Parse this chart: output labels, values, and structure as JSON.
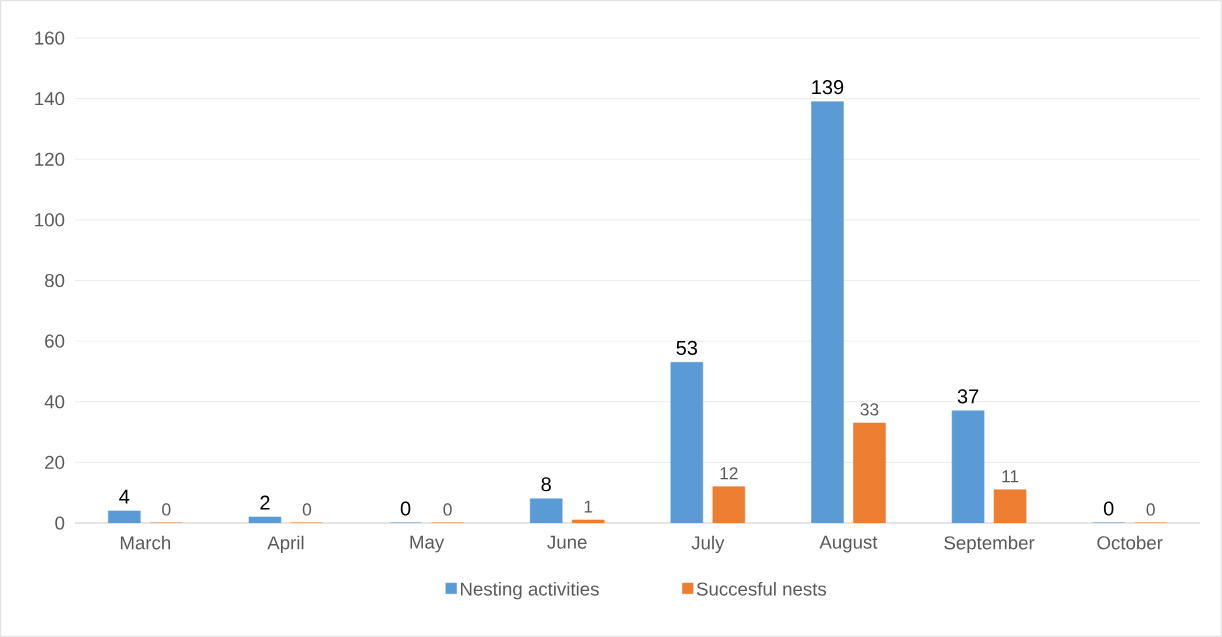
{
  "chart_data": {
    "type": "bar",
    "categories": [
      "March",
      "April",
      "May",
      "June",
      "July",
      "August",
      "September",
      "October"
    ],
    "series": [
      {
        "name": "Nesting activities",
        "color": "#5b9bd5",
        "values": [
          4,
          2,
          0,
          8,
          53,
          139,
          37,
          0
        ]
      },
      {
        "name": "Succesful nests",
        "color": "#ed7d31",
        "values": [
          0,
          0,
          0,
          1,
          12,
          33,
          11,
          0
        ]
      }
    ],
    "ylim": [
      0,
      160
    ],
    "yticks": [
      0,
      20,
      40,
      60,
      80,
      100,
      120,
      140,
      160
    ],
    "grid": "y",
    "legend": "bottom",
    "data_labels": true
  }
}
